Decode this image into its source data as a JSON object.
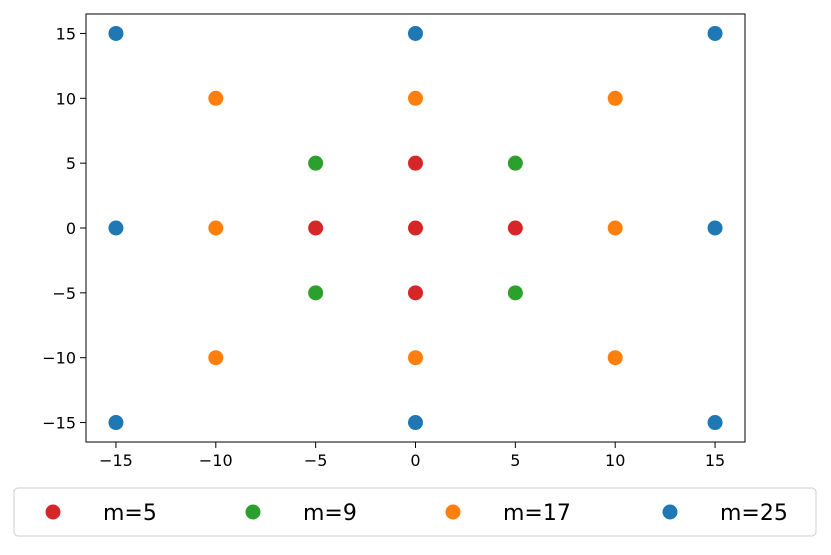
{
  "chart_data": {
    "type": "scatter",
    "xlim": [
      -16.5,
      16.5
    ],
    "ylim": [
      -16.5,
      16.5
    ],
    "xticks": [
      {
        "value": -15,
        "label": "−15"
      },
      {
        "value": -10,
        "label": "−10"
      },
      {
        "value": -5,
        "label": "−5"
      },
      0,
      5,
      10,
      15
    ],
    "yticks": [
      {
        "value": -15,
        "label": "−15"
      },
      {
        "value": -10,
        "label": "−10"
      },
      {
        "value": -5,
        "label": "−5"
      },
      0,
      5,
      10,
      15
    ],
    "legend": "lower center",
    "series": [
      {
        "name": "m=5",
        "color": "#d62728",
        "x": [
          0,
          5,
          -5,
          0,
          0
        ],
        "y": [
          0,
          0,
          0,
          5,
          -5
        ]
      },
      {
        "name": "m=9",
        "color": "#2ca02c",
        "x": [
          -5,
          5,
          -5,
          5
        ],
        "y": [
          5,
          5,
          -5,
          -5
        ]
      },
      {
        "name": "m=17",
        "color": "#ff7f0e",
        "x": [
          -10,
          0,
          10,
          -10,
          10,
          -10,
          0,
          10
        ],
        "y": [
          10,
          10,
          10,
          0,
          0,
          -10,
          -10,
          -10
        ]
      },
      {
        "name": "m=25",
        "color": "#1f77b4",
        "x": [
          -15,
          0,
          15,
          -15,
          15,
          -15,
          0,
          15
        ],
        "y": [
          15,
          15,
          15,
          0,
          0,
          -15,
          -15,
          -15
        ]
      }
    ]
  }
}
